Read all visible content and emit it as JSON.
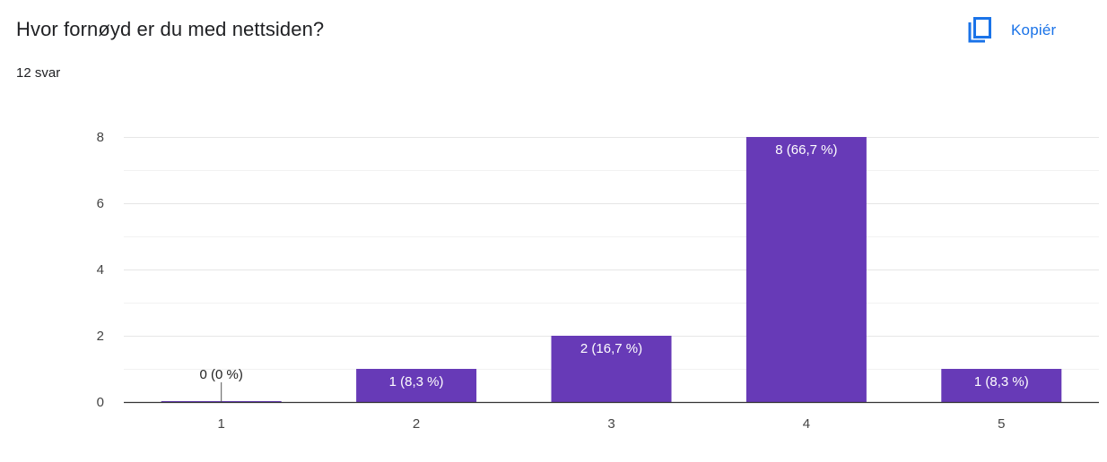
{
  "header": {
    "title": "Hvor fornøyd er du med nettsiden?",
    "responses": "12 svar",
    "copy_label": "Kopiér",
    "copy_icon": "copy-icon"
  },
  "colors": {
    "bar": "#673ab7",
    "accent": "#1a73e8",
    "grid": "#ebebeb",
    "axis": "#333333"
  },
  "chart_data": {
    "type": "bar",
    "categories": [
      "1",
      "2",
      "3",
      "4",
      "5"
    ],
    "values": [
      0,
      1,
      2,
      8,
      1
    ],
    "data_labels": [
      "0 (0 %)",
      "1 (8,3 %)",
      "2 (16,7 %)",
      "8 (66,7 %)",
      "1 (8,3 %)"
    ],
    "ylim": [
      0,
      8
    ],
    "yticks": [
      "0",
      "2",
      "4",
      "6",
      "8"
    ],
    "grid": true,
    "legend": "none"
  }
}
